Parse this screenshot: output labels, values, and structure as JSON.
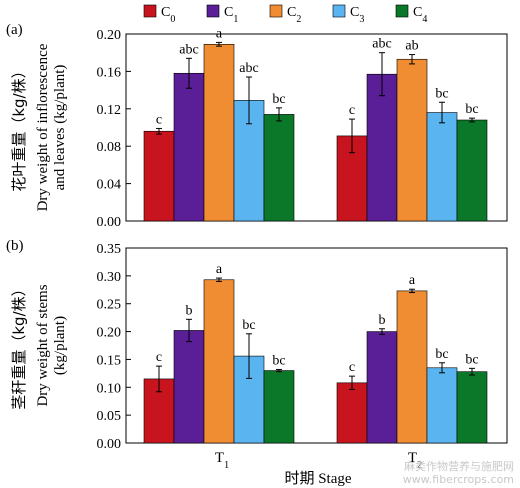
{
  "legend": {
    "items": [
      {
        "label": "C",
        "sub": "0",
        "color": "#c8141e"
      },
      {
        "label": "C",
        "sub": "1",
        "color": "#5a1e96"
      },
      {
        "label": "C",
        "sub": "2",
        "color": "#f08c32"
      },
      {
        "label": "C",
        "sub": "3",
        "color": "#5ab4f0"
      },
      {
        "label": "C",
        "sub": "4",
        "color": "#0a7828"
      }
    ]
  },
  "xaxis": {
    "label": "时期 Stage",
    "groups": [
      {
        "label": "T",
        "sub": "1"
      },
      {
        "label": "T",
        "sub": "2"
      }
    ]
  },
  "chart_data": [
    {
      "type": "bar",
      "panel_label": "(a)",
      "ylabel_cn": "花叶重量（kg/株）",
      "ylabel_en": [
        "Dry weight of inflorescence",
        "and leaves (kg/plant)"
      ],
      "ylim": [
        0.0,
        0.2
      ],
      "yticks": [
        "0.00",
        "0.04",
        "0.08",
        "0.12",
        "0.16",
        "0.20"
      ],
      "categories": [
        "T1",
        "T2"
      ],
      "series": [
        {
          "name": "C0",
          "values": [
            0.096,
            0.091
          ],
          "errors": [
            0.003,
            0.018
          ],
          "letters": [
            "c",
            "c"
          ]
        },
        {
          "name": "C1",
          "values": [
            0.158,
            0.157
          ],
          "errors": [
            0.016,
            0.023
          ],
          "letters": [
            "abc",
            "abc"
          ]
        },
        {
          "name": "C2",
          "values": [
            0.189,
            0.173
          ],
          "errors": [
            0.002,
            0.005
          ],
          "letters": [
            "a",
            "ab"
          ]
        },
        {
          "name": "C3",
          "values": [
            0.129,
            0.116
          ],
          "errors": [
            0.025,
            0.011
          ],
          "letters": [
            "abc",
            "bc"
          ]
        },
        {
          "name": "C4",
          "values": [
            0.114,
            0.108
          ],
          "errors": [
            0.007,
            0.002
          ],
          "letters": [
            "bc",
            "bc"
          ]
        }
      ]
    },
    {
      "type": "bar",
      "panel_label": "(b)",
      "ylabel_cn": "茎秆重量（kg/株）",
      "ylabel_en": [
        "Dry weight of stems",
        "(kg/plant)"
      ],
      "ylim": [
        0.0,
        0.35
      ],
      "yticks": [
        "0.00",
        "0.05",
        "0.10",
        "0.15",
        "0.20",
        "0.25",
        "0.30",
        "0.35"
      ],
      "categories": [
        "T1",
        "T2"
      ],
      "series": [
        {
          "name": "C0",
          "values": [
            0.115,
            0.108
          ],
          "errors": [
            0.023,
            0.012
          ],
          "letters": [
            "c",
            "c"
          ]
        },
        {
          "name": "C1",
          "values": [
            0.202,
            0.2
          ],
          "errors": [
            0.02,
            0.005
          ],
          "letters": [
            "b",
            "b"
          ]
        },
        {
          "name": "C2",
          "values": [
            0.293,
            0.273
          ],
          "errors": [
            0.003,
            0.003
          ],
          "letters": [
            "a",
            "a"
          ]
        },
        {
          "name": "C3",
          "values": [
            0.156,
            0.135
          ],
          "errors": [
            0.04,
            0.009
          ],
          "letters": [
            "bc",
            "bc"
          ]
        },
        {
          "name": "C4",
          "values": [
            0.13,
            0.128
          ],
          "errors": [
            0.002,
            0.006
          ],
          "letters": [
            "bc",
            "bc"
          ]
        }
      ]
    }
  ],
  "watermark": {
    "line1": "麻类作物营养与施肥网",
    "line2": "www.fibercrops.com"
  }
}
